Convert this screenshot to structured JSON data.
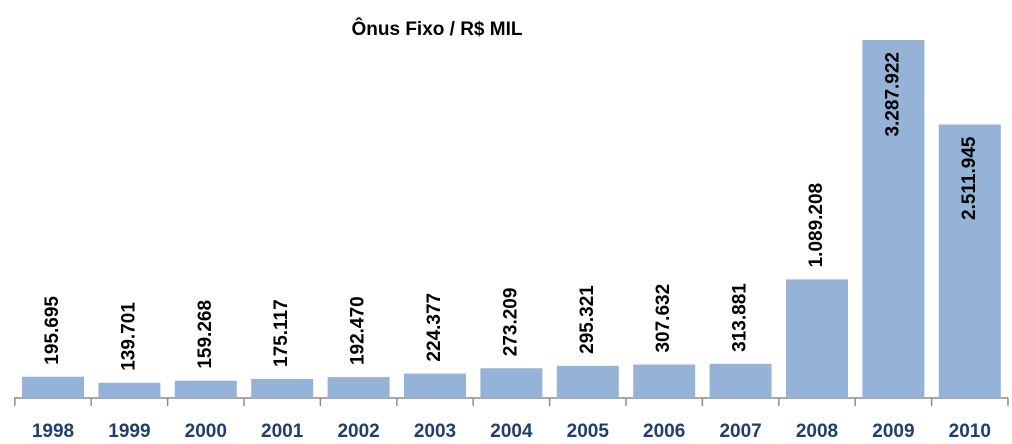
{
  "chart_data": {
    "type": "bar",
    "title": "Ônus Fixo / R$ MIL",
    "categories": [
      "1998",
      "1999",
      "2000",
      "2001",
      "2002",
      "2003",
      "2004",
      "2005",
      "2006",
      "2007",
      "2008",
      "2009",
      "2010"
    ],
    "values": [
      195695,
      139701,
      159268,
      175117,
      192470,
      224377,
      273209,
      295321,
      307632,
      313881,
      1089208,
      3287922,
      2511945
    ],
    "value_labels": [
      "195.695",
      "139.701",
      "159.268",
      "175.117",
      "192.470",
      "224.377",
      "273.209",
      "295.321",
      "307.632",
      "313.881",
      "1.089.208",
      "3.287.922",
      "2.511.945"
    ],
    "color": "#95b3d7"
  }
}
